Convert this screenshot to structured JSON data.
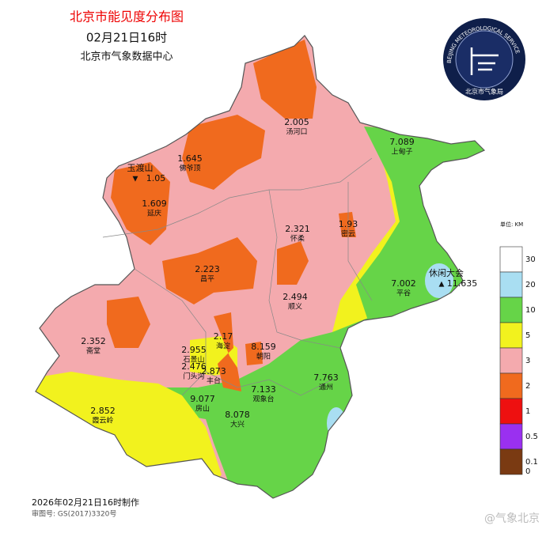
{
  "header": {
    "title": "北京市能见度分布图",
    "time": "02月21日16时",
    "org": "北京市气象数据中心"
  },
  "logo": {
    "ring_text": "BEIJING METEOROLOGICAL SERVICE",
    "name": "北京市气象局"
  },
  "stations": [
    {
      "value": 2.005,
      "name": "汤河口"
    },
    {
      "value": 7.089,
      "name": "上甸子"
    },
    {
      "value": 1.645,
      "name": "佛爷顶"
    },
    {
      "value": 1.05,
      "name": "玉渡山"
    },
    {
      "value": 1.609,
      "name": "延庆"
    },
    {
      "value": 1.93,
      "name": "密云"
    },
    {
      "value": 2.321,
      "name": "怀柔"
    },
    {
      "value": 2.223,
      "name": "昌平"
    },
    {
      "value": 7.002,
      "name": "平谷"
    },
    {
      "value": 11.635,
      "name": "休闲大会"
    },
    {
      "value": 2.494,
      "name": "顺义"
    },
    {
      "value": 2.17,
      "name": "海淀"
    },
    {
      "value": 8.159,
      "name": "朝阳"
    },
    {
      "value": 2.352,
      "name": "斋堂"
    },
    {
      "value": 2.955,
      "name": "石景山"
    },
    {
      "value": 2.476,
      "name": "门头沟"
    },
    {
      "value": 2.873,
      "name": "丰台"
    },
    {
      "value": 7.763,
      "name": "通州"
    },
    {
      "value": 7.133,
      "name": "观象台"
    },
    {
      "value": 9.077,
      "name": "房山"
    },
    {
      "value": 8.078,
      "name": "大兴"
    },
    {
      "value": 2.852,
      "name": "霞云岭"
    }
  ],
  "legend": {
    "unit": "单位: KM",
    "levels": [
      {
        "label": 30,
        "color": "#ffffff"
      },
      {
        "label": 20,
        "color": "#a9def2"
      },
      {
        "label": 10,
        "color": "#66d448"
      },
      {
        "label": 5,
        "color": "#f2f21e"
      },
      {
        "label": 3,
        "color": "#f4aaae"
      },
      {
        "label": 2,
        "color": "#f06a1e"
      },
      {
        "label": 1,
        "color": "#ee1010"
      },
      {
        "label": 0.5,
        "color": "#9a30f0"
      },
      {
        "label": 0.1,
        "color": "#7a3a12"
      },
      {
        "label": 0,
        "color": null
      }
    ]
  },
  "footer": {
    "made": "2026年02月21日16时制作",
    "approval": "审图号: GS(2017)3320号"
  },
  "watermark": "@气象北京"
}
